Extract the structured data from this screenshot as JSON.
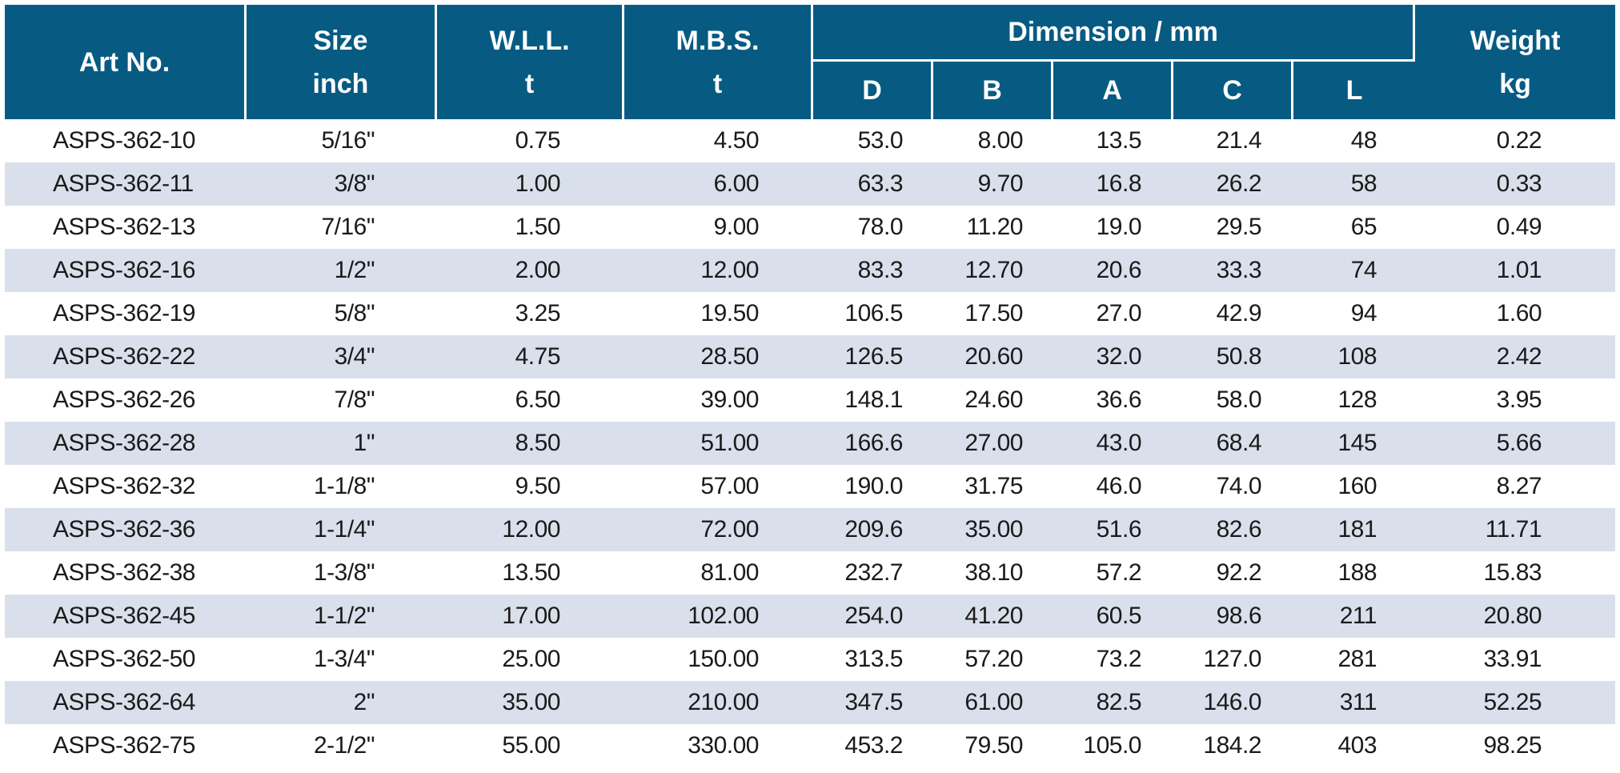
{
  "headers": {
    "art_no": "Art No.",
    "size": [
      "Size",
      "inch"
    ],
    "wll": [
      "W.L.L.",
      "t"
    ],
    "mbs": [
      "M.B.S.",
      "t"
    ],
    "dimension": "Dimension / mm",
    "dims": [
      "D",
      "B",
      "A",
      "C",
      "L"
    ],
    "weight": [
      "Weight",
      "kg"
    ]
  },
  "rows": [
    [
      "ASPS-362-10",
      "5/16\"",
      "0.75",
      "4.50",
      "53.0",
      "8.00",
      "13.5",
      "21.4",
      "48",
      "0.22"
    ],
    [
      "ASPS-362-11",
      "3/8\"",
      "1.00",
      "6.00",
      "63.3",
      "9.70",
      "16.8",
      "26.2",
      "58",
      "0.33"
    ],
    [
      "ASPS-362-13",
      "7/16\"",
      "1.50",
      "9.00",
      "78.0",
      "11.20",
      "19.0",
      "29.5",
      "65",
      "0.49"
    ],
    [
      "ASPS-362-16",
      "1/2\"",
      "2.00",
      "12.00",
      "83.3",
      "12.70",
      "20.6",
      "33.3",
      "74",
      "1.01"
    ],
    [
      "ASPS-362-19",
      "5/8\"",
      "3.25",
      "19.50",
      "106.5",
      "17.50",
      "27.0",
      "42.9",
      "94",
      "1.60"
    ],
    [
      "ASPS-362-22",
      "3/4\"",
      "4.75",
      "28.50",
      "126.5",
      "20.60",
      "32.0",
      "50.8",
      "108",
      "2.42"
    ],
    [
      "ASPS-362-26",
      "7/8\"",
      "6.50",
      "39.00",
      "148.1",
      "24.60",
      "36.6",
      "58.0",
      "128",
      "3.95"
    ],
    [
      "ASPS-362-28",
      "1\"",
      "8.50",
      "51.00",
      "166.6",
      "27.00",
      "43.0",
      "68.4",
      "145",
      "5.66"
    ],
    [
      "ASPS-362-32",
      "1-1/8\"",
      "9.50",
      "57.00",
      "190.0",
      "31.75",
      "46.0",
      "74.0",
      "160",
      "8.27"
    ],
    [
      "ASPS-362-36",
      "1-1/4\"",
      "12.00",
      "72.00",
      "209.6",
      "35.00",
      "51.6",
      "82.6",
      "181",
      "11.71"
    ],
    [
      "ASPS-362-38",
      "1-3/8\"",
      "13.50",
      "81.00",
      "232.7",
      "38.10",
      "57.2",
      "92.2",
      "188",
      "15.83"
    ],
    [
      "ASPS-362-45",
      "1-1/2\"",
      "17.00",
      "102.00",
      "254.0",
      "41.20",
      "60.5",
      "98.6",
      "211",
      "20.80"
    ],
    [
      "ASPS-362-50",
      "1-3/4\"",
      "25.00",
      "150.00",
      "313.5",
      "57.20",
      "73.2",
      "127.0",
      "281",
      "33.91"
    ],
    [
      "ASPS-362-64",
      "2\"",
      "35.00",
      "210.00",
      "347.5",
      "61.00",
      "82.5",
      "146.0",
      "311",
      "52.25"
    ],
    [
      "ASPS-362-75",
      "2-1/2\"",
      "55.00",
      "330.00",
      "453.2",
      "79.50",
      "105.0",
      "184.2",
      "403",
      "98.25"
    ]
  ],
  "colors": {
    "header_bg": "#075b82",
    "stripe_bg": "#d9e0ec"
  }
}
